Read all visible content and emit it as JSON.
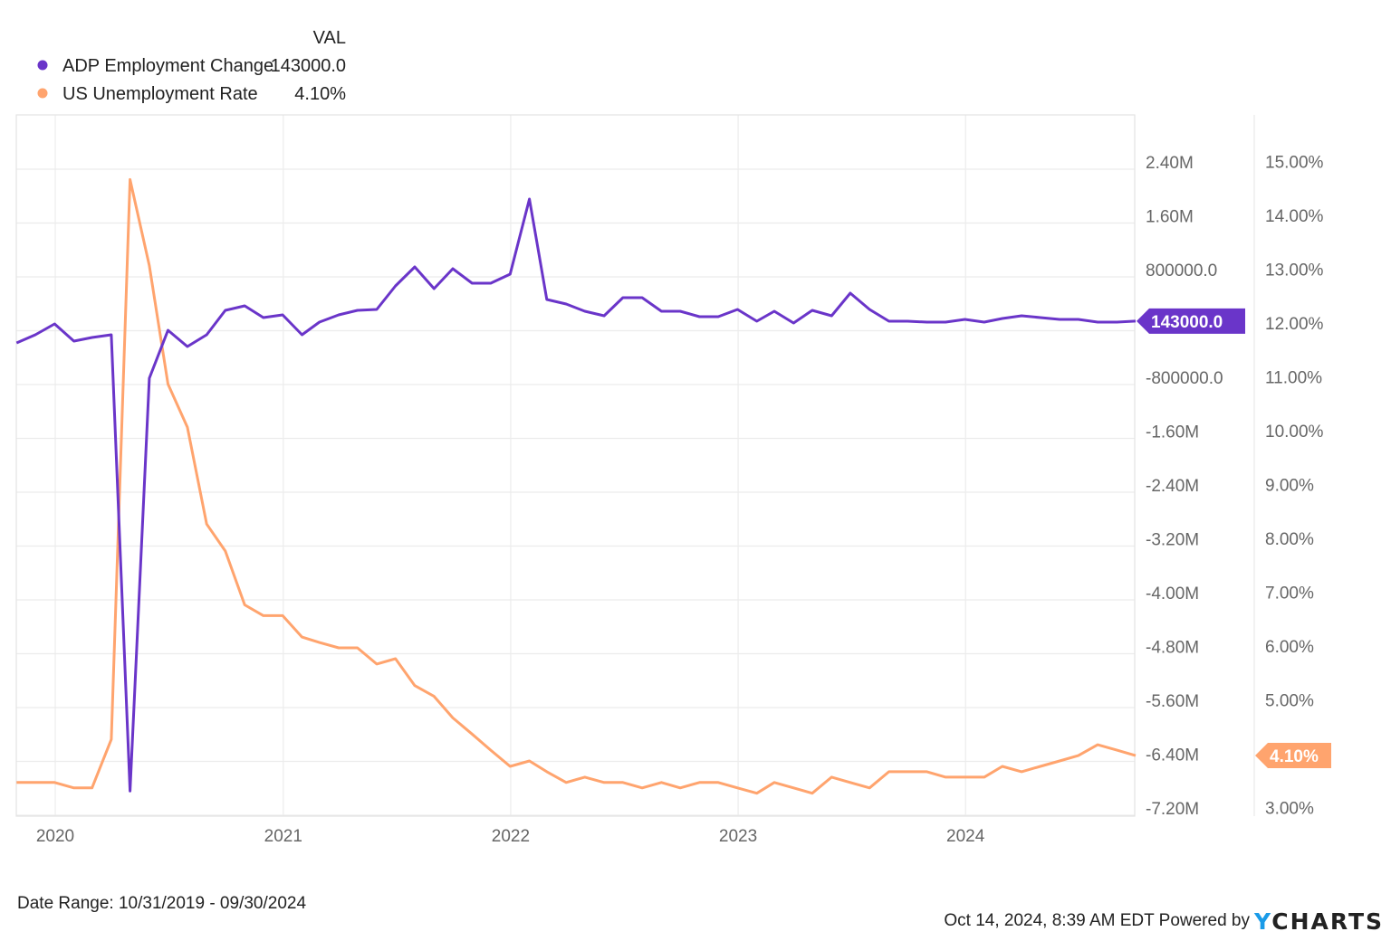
{
  "chart_data": {
    "type": "line",
    "legend": {
      "header": "VAL",
      "placement": "top-left",
      "entries": [
        {
          "name": "ADP Employment Change",
          "value": "143000.0",
          "color": "#6a35c9"
        },
        {
          "name": "US Unemployment Rate",
          "value": "4.10%",
          "color": "#ffa46e"
        }
      ]
    },
    "x": [
      "2019-10-31",
      "2019-11-30",
      "2019-12-31",
      "2020-01-31",
      "2020-02-29",
      "2020-03-31",
      "2020-04-30",
      "2020-05-31",
      "2020-06-30",
      "2020-07-31",
      "2020-08-31",
      "2020-09-30",
      "2020-10-31",
      "2020-11-30",
      "2020-12-31",
      "2021-01-31",
      "2021-02-28",
      "2021-03-31",
      "2021-04-30",
      "2021-05-31",
      "2021-06-30",
      "2021-07-31",
      "2021-08-31",
      "2021-09-30",
      "2021-10-31",
      "2021-11-30",
      "2021-12-31",
      "2022-01-31",
      "2022-02-28",
      "2022-03-31",
      "2022-04-30",
      "2022-05-31",
      "2022-06-30",
      "2022-07-31",
      "2022-08-31",
      "2022-09-30",
      "2022-10-31",
      "2022-11-30",
      "2022-12-31",
      "2023-01-31",
      "2023-02-28",
      "2023-03-31",
      "2023-04-30",
      "2023-05-31",
      "2023-06-30",
      "2023-07-31",
      "2023-08-31",
      "2023-09-30",
      "2023-10-31",
      "2023-11-30",
      "2023-12-31",
      "2024-01-31",
      "2024-02-29",
      "2024-03-31",
      "2024-04-30",
      "2024-05-31",
      "2024-06-30",
      "2024-07-31",
      "2024-08-31",
      "2024-09-30"
    ],
    "series": [
      {
        "name": "ADP Employment Change",
        "axis": "left",
        "color": "#6a35c9",
        "values": [
          -182000,
          -61000,
          101000,
          -155000,
          -101000,
          -61000,
          -6840000,
          -706000,
          7000,
          -235000,
          -61000,
          303000,
          370000,
          195000,
          235000,
          -61000,
          128000,
          235000,
          303000,
          316000,
          666000,
          948000,
          625000,
          921000,
          706000,
          706000,
          840000,
          1956000,
          464000,
          397000,
          289000,
          222000,
          491000,
          491000,
          289000,
          289000,
          208000,
          208000,
          316000,
          141000,
          289000,
          114000,
          303000,
          222000,
          558000,
          316000,
          141000,
          141000,
          128000,
          128000,
          168000,
          128000,
          182000,
          222000,
          195000,
          168000,
          168000,
          128000,
          128000,
          143000
        ]
      },
      {
        "name": "US Unemployment Rate",
        "axis": "right",
        "color": "#ffa46e",
        "values": [
          3.6,
          3.6,
          3.6,
          3.5,
          3.5,
          4.4,
          14.8,
          13.2,
          11.0,
          10.2,
          8.4,
          7.9,
          6.9,
          6.7,
          6.7,
          6.3,
          6.2,
          6.1,
          6.1,
          5.8,
          5.9,
          5.4,
          5.2,
          4.8,
          4.5,
          4.2,
          3.9,
          4.0,
          3.8,
          3.6,
          3.7,
          3.6,
          3.6,
          3.5,
          3.6,
          3.5,
          3.6,
          3.6,
          3.5,
          3.4,
          3.6,
          3.5,
          3.4,
          3.7,
          3.6,
          3.5,
          3.8,
          3.8,
          3.8,
          3.7,
          3.7,
          3.7,
          3.9,
          3.8,
          3.9,
          4.0,
          4.1,
          4.3,
          4.2,
          4.1
        ]
      }
    ],
    "x_ticks": [
      "2020",
      "2021",
      "2022",
      "2023",
      "2024"
    ],
    "y_left": {
      "range": [
        -7200000,
        3000000
      ],
      "ticks": [
        2400000,
        1600000,
        800000,
        0,
        -800000,
        -1600000,
        -2400000,
        -3200000,
        -4000000,
        -4800000,
        -5600000,
        -6400000,
        -7200000
      ],
      "tick_labels": [
        "2.40M",
        "1.60M",
        "800000.0",
        "",
        "-800000.0",
        "-1.60M",
        "-2.40M",
        "-3.20M",
        "-4.00M",
        "-4.80M",
        "-5.60M",
        "-6.40M",
        "-7.20M"
      ]
    },
    "y_right": {
      "range": [
        3,
        15.9
      ],
      "ticks": [
        15,
        14,
        13,
        12,
        11,
        10,
        9,
        8,
        7,
        6,
        5,
        4,
        3
      ],
      "tick_labels": [
        "15.00%",
        "14.00%",
        "13.00%",
        "12.00%",
        "11.00%",
        "10.00%",
        "9.00%",
        "8.00%",
        "7.00%",
        "6.00%",
        "5.00%",
        "",
        "3.00%"
      ]
    },
    "last_value_flags": {
      "left": "143000.0",
      "right": "4.10%"
    },
    "grid": true
  },
  "footer": {
    "date_range": "Date Range: 10/31/2019 - 09/30/2024",
    "timestamp": "Oct 14, 2024, 8:39 AM EDT Powered by",
    "brand": "YCHARTS",
    "brand_y_color": "#1a9be8"
  }
}
